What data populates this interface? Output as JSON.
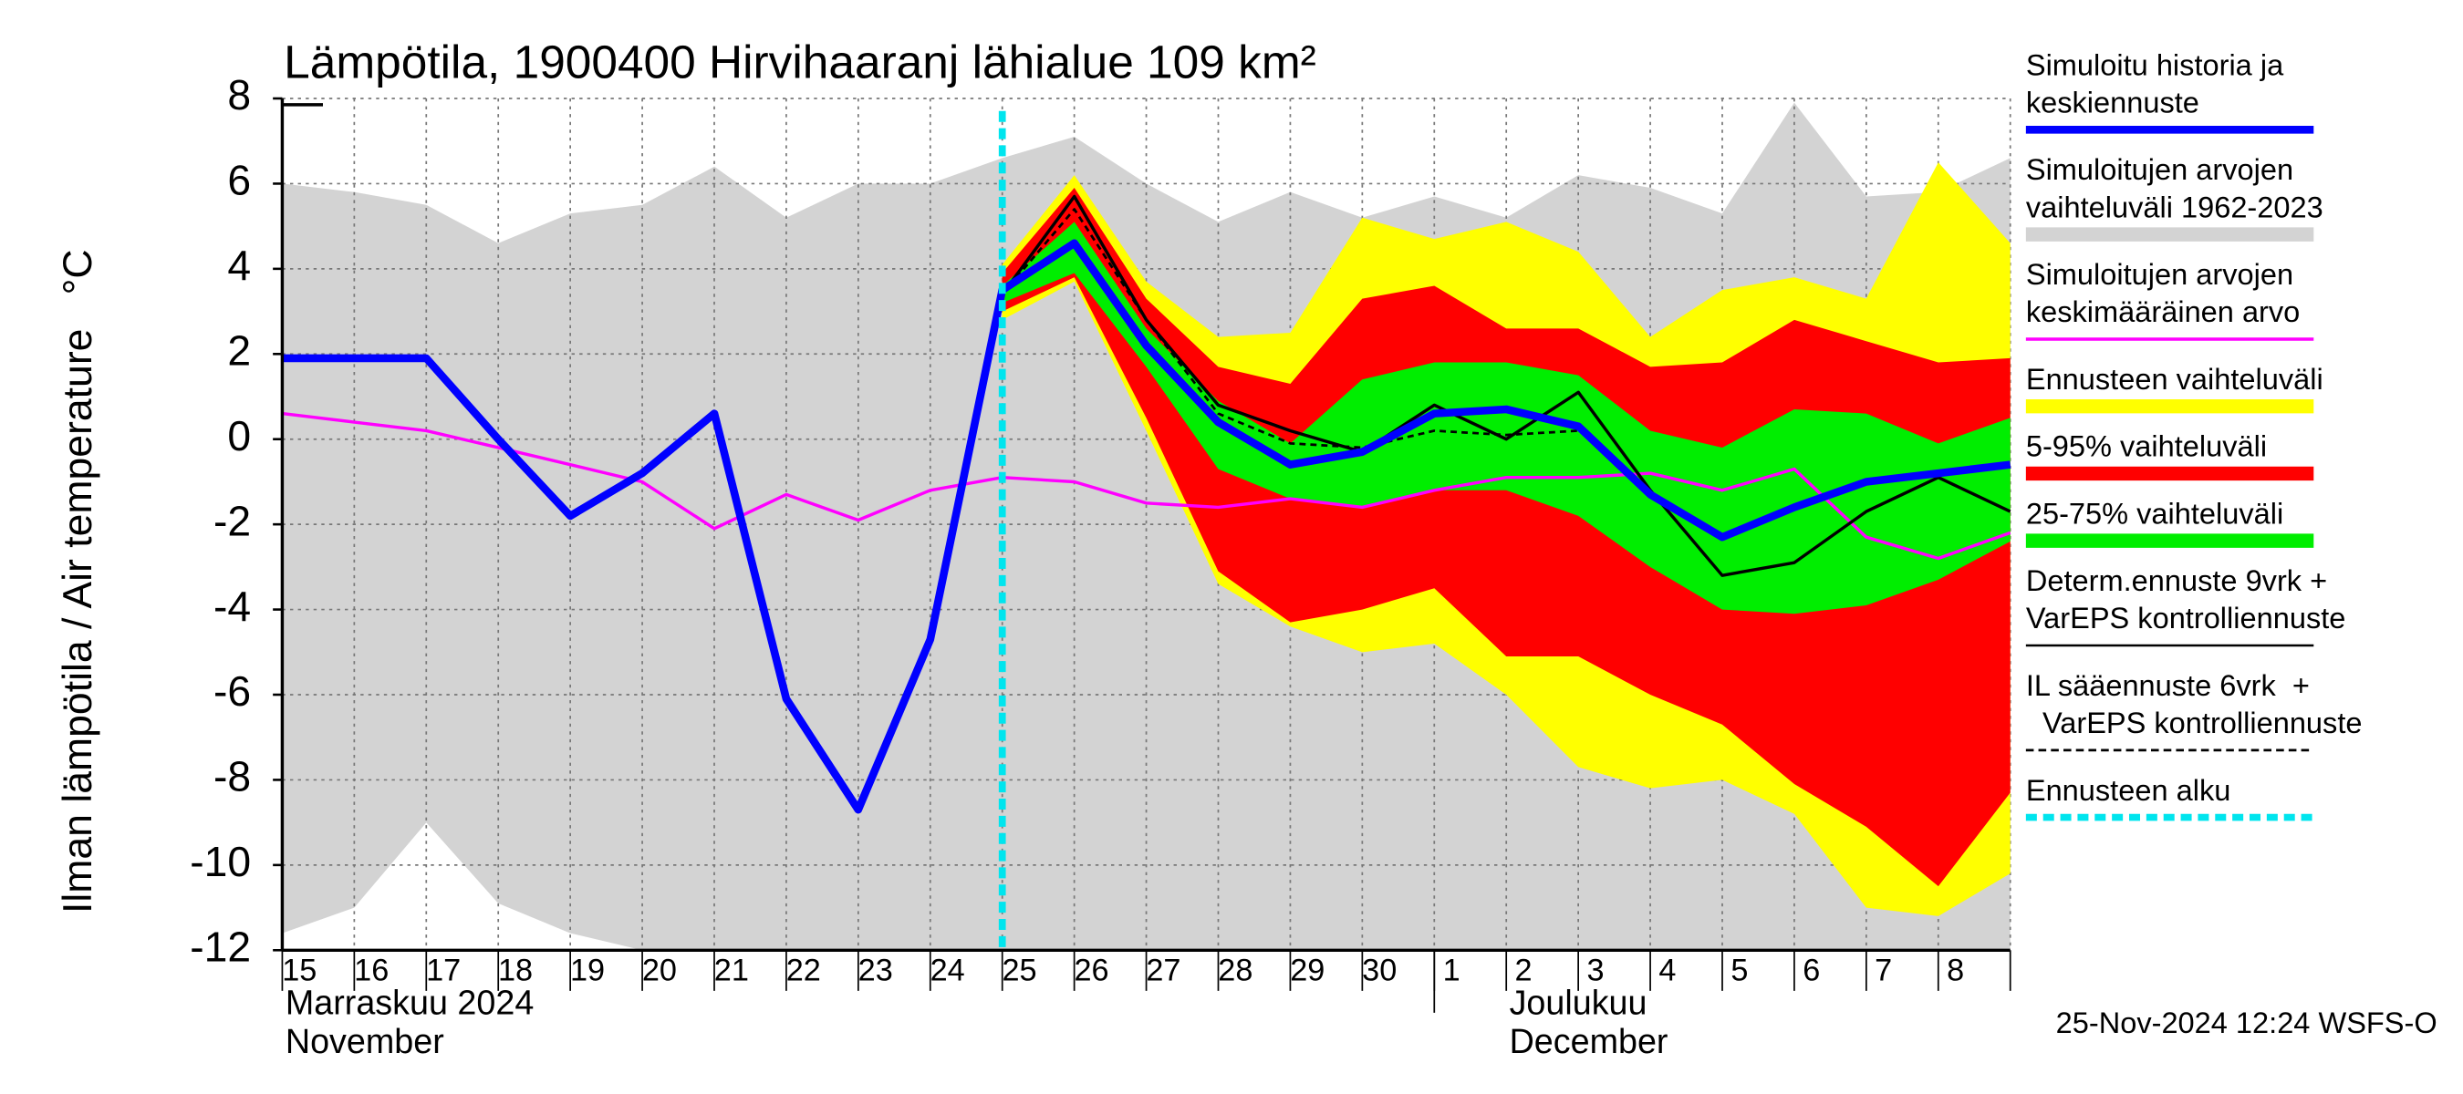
{
  "chart_data": {
    "type": "line",
    "title": "Lämpötila, 1900400 Hirvihaaranj lähialue 109 km²",
    "y_label": "Ilman lämpötila / Air temperature   °C",
    "timestamp": "25-Nov-2024 12:24 WSFS-O",
    "categories": [
      "15",
      "16",
      "17",
      "18",
      "19",
      "20",
      "21",
      "22",
      "23",
      "24",
      "25",
      "26",
      "27",
      "28",
      "29",
      "30",
      "1",
      "2",
      "3",
      "4",
      "5",
      "6",
      "7",
      "8",
      null
    ],
    "x_groups": [
      {
        "lines": [
          "Marraskuu 2024",
          "November"
        ],
        "start": "15"
      },
      {
        "lines": [
          "Joulukuu",
          "December"
        ],
        "start": "1"
      }
    ],
    "ylim": [
      -12,
      8
    ],
    "yticks": [
      -12,
      -10,
      -8,
      -6,
      -4,
      -2,
      0,
      2,
      4,
      6,
      8
    ],
    "grid": true,
    "series": [
      {
        "name": [
          "Simuloitu historia ja",
          "keskiennuste"
        ],
        "color": "#0000ff",
        "kind": "thick-line",
        "values": [
          1.9,
          1.9,
          1.9,
          0,
          -1.8,
          -0.8,
          0.6,
          -6.1,
          -8.7,
          -4.7,
          3.5,
          4.6,
          2.2,
          0.4,
          -0.6,
          -0.3,
          0.6,
          0.7,
          0.3,
          -1.3,
          -2.3,
          -1.6,
          -1.0,
          -0.8,
          -0.6
        ]
      },
      {
        "name": [
          "Simuloitujen arvojen",
          "vaihteluväli 1962-2023"
        ],
        "color": "#d3d3d3",
        "kind": "range-band",
        "upper": [
          6.0,
          5.8,
          5.5,
          4.6,
          5.3,
          5.5,
          6.4,
          5.2,
          6.0,
          6.0,
          6.6,
          7.1,
          6.0,
          5.1,
          5.8,
          5.2,
          5.7,
          5.2,
          6.2,
          5.9,
          5.3,
          7.9,
          5.7,
          5.8,
          6.6
        ],
        "lower": [
          -11.6,
          -11.0,
          -9.0,
          -10.9,
          -11.6,
          -12,
          -12,
          -12,
          -12,
          -12,
          -12,
          -12,
          -12,
          -12,
          -12,
          -12,
          -12,
          -12,
          -12,
          -12,
          -12,
          -12,
          -12,
          -12,
          -12
        ]
      },
      {
        "name": [
          "Simuloitujen arvojen",
          "keskimääräinen arvo"
        ],
        "color": "#ff00ff",
        "kind": "line",
        "values": [
          0.6,
          0.4,
          0.2,
          -0.2,
          -0.6,
          -1.0,
          -2.1,
          -1.3,
          -1.9,
          -1.2,
          -0.9,
          -1.0,
          -1.5,
          -1.6,
          -1.4,
          -1.6,
          -1.2,
          -0.9,
          -0.9,
          -0.8,
          -1.2,
          -0.7,
          -2.3,
          -2.8,
          -2.2
        ]
      },
      {
        "name": [
          "Ennusteen vaihteluväli"
        ],
        "color": "#ffff00",
        "kind": "band",
        "upper": [
          null,
          null,
          null,
          null,
          null,
          null,
          null,
          null,
          null,
          null,
          4.1,
          6.2,
          3.7,
          2.4,
          2.5,
          5.2,
          4.7,
          5.1,
          4.4,
          2.4,
          3.5,
          3.8,
          3.3,
          6.5,
          4.6
        ],
        "lower": [
          null,
          null,
          null,
          null,
          null,
          null,
          null,
          null,
          null,
          null,
          2.8,
          3.7,
          0.2,
          -3.4,
          -4.4,
          -5.0,
          -4.8,
          -6.0,
          -7.7,
          -8.2,
          -8.0,
          -8.8,
          -11.0,
          -11.2,
          -10.2
        ]
      },
      {
        "name": [
          "5-95% vaihteluväli"
        ],
        "color": "#ff0000",
        "kind": "band",
        "upper": [
          null,
          null,
          null,
          null,
          null,
          null,
          null,
          null,
          null,
          null,
          3.9,
          5.9,
          3.3,
          1.7,
          1.3,
          3.3,
          3.6,
          2.6,
          2.6,
          1.7,
          1.8,
          2.8,
          2.3,
          1.8,
          1.9
        ],
        "lower": [
          null,
          null,
          null,
          null,
          null,
          null,
          null,
          null,
          null,
          null,
          3.0,
          3.8,
          0.5,
          -3.1,
          -4.3,
          -4.0,
          -3.5,
          -5.1,
          -5.1,
          -6.0,
          -6.7,
          -8.1,
          -9.1,
          -10.5,
          -8.3
        ]
      },
      {
        "name": [
          "25-75% vaihteluväli"
        ],
        "color": "#00ee00",
        "kind": "band",
        "upper": [
          null,
          null,
          null,
          null,
          null,
          null,
          null,
          null,
          null,
          null,
          3.6,
          5.1,
          2.6,
          0.9,
          -0.1,
          1.4,
          1.8,
          1.8,
          1.5,
          0.2,
          -0.2,
          0.7,
          0.6,
          -0.1,
          0.5
        ],
        "lower": [
          null,
          null,
          null,
          null,
          null,
          null,
          null,
          null,
          null,
          null,
          3.2,
          3.9,
          1.7,
          -0.7,
          -1.4,
          -1.6,
          -1.2,
          -1.2,
          -1.8,
          -3.0,
          -4.0,
          -4.1,
          -3.9,
          -3.3,
          -2.4
        ]
      },
      {
        "name": [
          "Determ.ennuste 9vrk +",
          "VarEPS kontrolliennuste"
        ],
        "color": "#000000",
        "kind": "line",
        "values": [
          null,
          null,
          null,
          null,
          null,
          null,
          null,
          null,
          null,
          null,
          3.4,
          5.7,
          2.8,
          0.8,
          0.2,
          -0.3,
          0.8,
          0,
          1.1,
          -1.2,
          -3.2,
          -2.9,
          -1.7,
          -0.9,
          -1.7
        ]
      },
      {
        "name": [
          "IL sääennuste 6vrk  +",
          "  VarEPS kontrolliennuste"
        ],
        "color": "#000000",
        "kind": "dashed-line",
        "values": [
          null,
          null,
          null,
          null,
          null,
          null,
          null,
          null,
          null,
          null,
          3.4,
          5.4,
          2.8,
          0.6,
          -0.1,
          -0.2,
          0.2,
          0.1,
          0.2,
          null,
          null,
          null,
          null,
          null,
          null
        ]
      },
      {
        "name": [
          "Ennusteen alku"
        ],
        "color": "#00e5ee",
        "kind": "start-line",
        "at": "25"
      }
    ]
  }
}
